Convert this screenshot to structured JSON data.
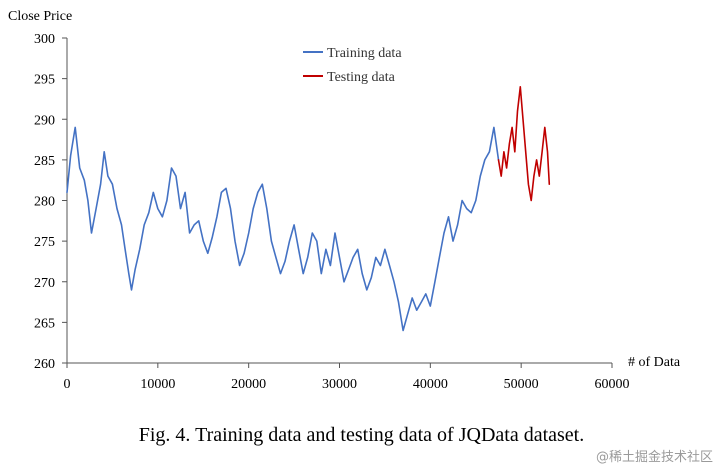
{
  "chart_data": {
    "type": "line",
    "ylabel": "Close Price",
    "xlabel": "# of Data",
    "xlim": [
      0,
      60000
    ],
    "ylim": [
      260,
      300
    ],
    "xticks": [
      0,
      10000,
      20000,
      30000,
      40000,
      50000,
      60000
    ],
    "xtick_labels": [
      "0",
      "10000",
      "20000",
      "30000",
      "40000",
      "50000",
      "60000"
    ],
    "yticks": [
      260,
      265,
      270,
      275,
      280,
      285,
      290,
      295,
      300
    ],
    "ytick_labels": [
      "260",
      "265",
      "270",
      "275",
      "280",
      "285",
      "290",
      "295",
      "300"
    ],
    "grid": false,
    "legend_position": "top-center",
    "series": [
      {
        "name": "Training data",
        "color": "#4472c4",
        "points": [
          [
            0,
            281
          ],
          [
            400,
            285.5
          ],
          [
            900,
            289
          ],
          [
            1400,
            284
          ],
          [
            1900,
            282.5
          ],
          [
            2300,
            280
          ],
          [
            2700,
            276
          ],
          [
            3200,
            279
          ],
          [
            3700,
            282
          ],
          [
            4100,
            286
          ],
          [
            4500,
            283
          ],
          [
            5000,
            282
          ],
          [
            5500,
            279
          ],
          [
            6000,
            277
          ],
          [
            6400,
            274
          ],
          [
            6800,
            271
          ],
          [
            7100,
            269
          ],
          [
            7500,
            271.5
          ],
          [
            8000,
            274
          ],
          [
            8500,
            277
          ],
          [
            9000,
            278.5
          ],
          [
            9500,
            281
          ],
          [
            10000,
            279
          ],
          [
            10500,
            278
          ],
          [
            11000,
            280
          ],
          [
            11500,
            284
          ],
          [
            12000,
            283
          ],
          [
            12500,
            279
          ],
          [
            13000,
            281
          ],
          [
            13500,
            276
          ],
          [
            14000,
            277
          ],
          [
            14500,
            277.5
          ],
          [
            15000,
            275
          ],
          [
            15500,
            273.5
          ],
          [
            16000,
            275.5
          ],
          [
            16500,
            278
          ],
          [
            17000,
            281
          ],
          [
            17500,
            281.5
          ],
          [
            18000,
            279
          ],
          [
            18500,
            275
          ],
          [
            19000,
            272
          ],
          [
            19500,
            273.5
          ],
          [
            20000,
            276
          ],
          [
            20500,
            279
          ],
          [
            21000,
            281
          ],
          [
            21500,
            282
          ],
          [
            22000,
            279
          ],
          [
            22500,
            275
          ],
          [
            23000,
            273
          ],
          [
            23500,
            271
          ],
          [
            24000,
            272.5
          ],
          [
            24500,
            275
          ],
          [
            25000,
            277
          ],
          [
            25500,
            274
          ],
          [
            26000,
            271
          ],
          [
            26500,
            273
          ],
          [
            27000,
            276
          ],
          [
            27500,
            275
          ],
          [
            28000,
            271
          ],
          [
            28500,
            274
          ],
          [
            29000,
            272
          ],
          [
            29500,
            276
          ],
          [
            30000,
            273
          ],
          [
            30500,
            270
          ],
          [
            31000,
            271.5
          ],
          [
            31500,
            273
          ],
          [
            32000,
            274
          ],
          [
            32500,
            271
          ],
          [
            33000,
            269
          ],
          [
            33500,
            270.5
          ],
          [
            34000,
            273
          ],
          [
            34500,
            272
          ],
          [
            35000,
            274
          ],
          [
            35500,
            272
          ],
          [
            36000,
            270
          ],
          [
            36500,
            267.5
          ],
          [
            37000,
            264
          ],
          [
            37500,
            266
          ],
          [
            38000,
            268
          ],
          [
            38500,
            266.5
          ],
          [
            39000,
            267.5
          ],
          [
            39500,
            268.5
          ],
          [
            40000,
            267
          ],
          [
            40500,
            270
          ],
          [
            41000,
            273
          ],
          [
            41500,
            276
          ],
          [
            42000,
            278
          ],
          [
            42500,
            275
          ],
          [
            43000,
            277
          ],
          [
            43500,
            280
          ],
          [
            44000,
            279
          ],
          [
            44500,
            278.5
          ],
          [
            45000,
            280
          ],
          [
            45500,
            283
          ],
          [
            46000,
            285
          ],
          [
            46500,
            286
          ],
          [
            47000,
            289
          ],
          [
            47500,
            285
          ]
        ]
      },
      {
        "name": "Testing data",
        "color": "#c00000",
        "points": [
          [
            47500,
            285
          ],
          [
            47800,
            283
          ],
          [
            48100,
            286
          ],
          [
            48400,
            284
          ],
          [
            48700,
            287
          ],
          [
            49000,
            289
          ],
          [
            49300,
            286
          ],
          [
            49600,
            291
          ],
          [
            49900,
            294
          ],
          [
            50200,
            290
          ],
          [
            50500,
            286
          ],
          [
            50800,
            282
          ],
          [
            51100,
            280
          ],
          [
            51400,
            283
          ],
          [
            51700,
            285
          ],
          [
            52000,
            283
          ],
          [
            52300,
            286
          ],
          [
            52600,
            289
          ],
          [
            52900,
            286
          ],
          [
            53100,
            282
          ]
        ]
      }
    ]
  },
  "caption": "Fig. 4.  Training data and testing data of JQData dataset.",
  "watermark": "@稀土掘金技术社区"
}
